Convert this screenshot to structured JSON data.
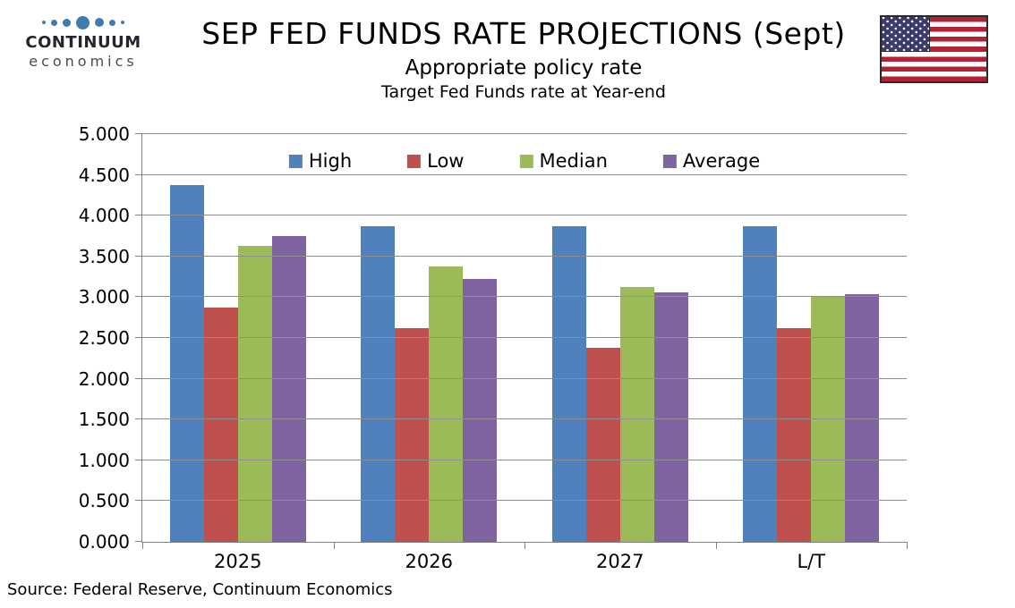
{
  "logo": {
    "name": "CONTINUUM",
    "subname": "economics"
  },
  "brand": {
    "logo_dot_color": "#3f7cad"
  },
  "header": {
    "title": "SEP FED FUNDS RATE PROJECTIONS (Sept)",
    "subtitle": "Appropriate policy rate",
    "subtitle2": "Target Fed Funds rate at Year-end"
  },
  "flag": {
    "label": "us-flag",
    "red": "#b22234",
    "navy": "#3c3b6e",
    "white": "#ffffff"
  },
  "source_note": "Source: Federal Reserve, Continuum Economics",
  "chart_data": {
    "type": "bar",
    "title": "SEP FED FUNDS RATE PROJECTIONS (Sept)",
    "subtitle": "Appropriate policy rate",
    "note": "Target Fed Funds rate at Year-end",
    "categories": [
      "2025",
      "2026",
      "2027",
      "L/T"
    ],
    "series": [
      {
        "name": "High",
        "color": "#4F81BD",
        "values": [
          4.375,
          3.875,
          3.875,
          3.875
        ]
      },
      {
        "name": "Low",
        "color": "#C0504D",
        "values": [
          2.875,
          2.625,
          2.375,
          2.625
        ]
      },
      {
        "name": "Median",
        "color": "#9BBB59",
        "values": [
          3.625,
          3.375,
          3.125,
          3.0
        ]
      },
      {
        "name": "Average",
        "color": "#8064A2",
        "values": [
          3.75,
          3.22,
          3.06,
          3.04
        ]
      }
    ],
    "ylim": [
      0,
      5
    ],
    "ytick_step": 0.5,
    "ytick_decimals": 3,
    "xlabel": "",
    "ylabel": "",
    "grid": true,
    "legend_position": "top-center",
    "source": "Source: Federal Reserve, Continuum Economics"
  }
}
